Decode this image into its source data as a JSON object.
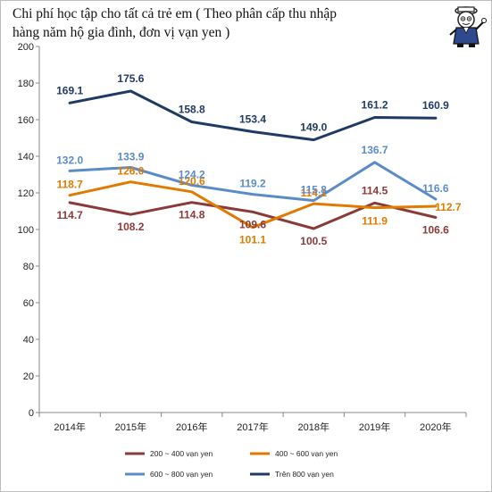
{
  "title_lines": [
    "Chi phí học tập cho tất cả trẻ em ( Theo phân cấp thu nhập",
    "hàng năm hộ gia đình, đơn vị vạn yen )"
  ],
  "mascot_icon": "cartoon-student-mascot",
  "chart_data": {
    "type": "line",
    "title": "Chi phí học tập cho tất cả trẻ em ( Theo phân cấp thu nhập hàng năm hộ gia đình, đơn vị vạn yen )",
    "categories": [
      "2014年",
      "2015年",
      "2016年",
      "2017年",
      "2018年",
      "2019年",
      "2020年"
    ],
    "ylim": [
      0,
      200
    ],
    "yticks": [
      0,
      20,
      40,
      60,
      80,
      100,
      120,
      140,
      160,
      180,
      200
    ],
    "grid": false,
    "legend_position": "bottom",
    "series": [
      {
        "name": "200 ~ 400 vạn yen",
        "color": "#8B3A3A",
        "values": [
          114.7,
          108.2,
          114.8,
          109.6,
          100.5,
          114.5,
          106.6
        ],
        "labels": [
          "114.7",
          "108.2",
          "114.8",
          "109.6",
          "100.5",
          "114.5",
          "106.6"
        ]
      },
      {
        "name": "400 ~ 600 vạn yen",
        "color": "#E07B00",
        "values": [
          118.7,
          126.0,
          120.6,
          101.1,
          114.1,
          111.9,
          112.7
        ],
        "labels": [
          "118.7",
          "126.0",
          "120.6",
          "101.1",
          "114.1",
          "111.9",
          "112.7"
        ]
      },
      {
        "name": "600 ~ 800 vạn yen",
        "color": "#5B8CC8",
        "values": [
          132.0,
          133.9,
          124.2,
          119.2,
          115.8,
          136.7,
          116.6
        ],
        "labels": [
          "132.0",
          "133.9",
          "124.2",
          "119.2",
          "115.8",
          "136.7",
          "116.6"
        ]
      },
      {
        "name": "Trên 800 vạn yen",
        "color": "#1F3A64",
        "values": [
          169.1,
          175.6,
          158.8,
          153.4,
          149.0,
          161.2,
          160.9
        ],
        "labels": [
          "169.1",
          "175.6",
          "158.8",
          "153.4",
          "149.0",
          "161.2",
          "160.9"
        ]
      }
    ]
  }
}
